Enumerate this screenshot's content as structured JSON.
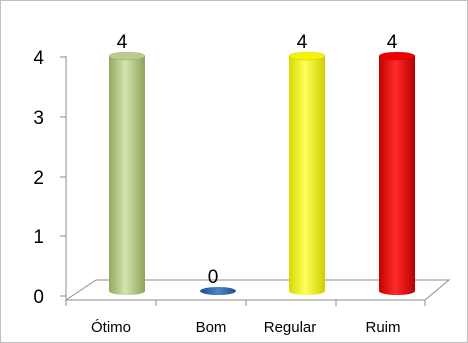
{
  "chart_data": {
    "type": "bar",
    "categories": [
      "Ótimo",
      "Bom",
      "Regular",
      "Ruim"
    ],
    "values": [
      4,
      0,
      4,
      4
    ],
    "data_labels": [
      "4",
      "0",
      "4",
      "4"
    ],
    "y_ticks": [
      "0",
      "1",
      "2",
      "3",
      "4"
    ],
    "ylim": [
      0,
      4
    ],
    "grid": false,
    "legend": "none",
    "title": "",
    "xlabel": "",
    "ylabel": "",
    "bar_colors": [
      "#b9cc8a",
      "#2e6bb0",
      "#f5f500",
      "#ee0000"
    ]
  }
}
